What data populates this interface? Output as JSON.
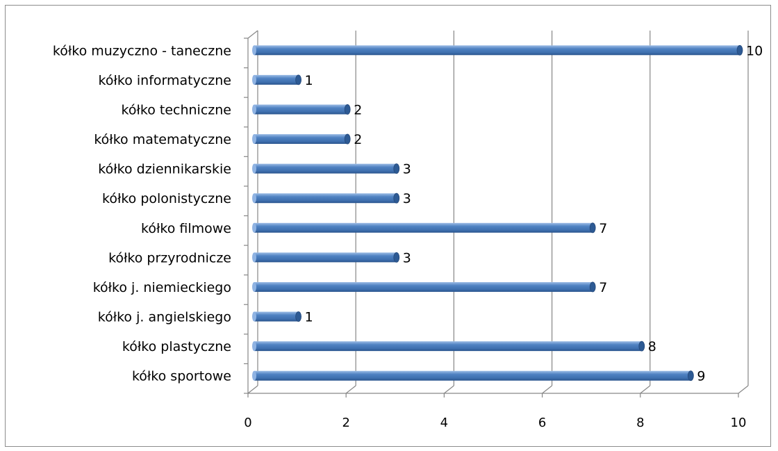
{
  "chart_data": {
    "type": "bar",
    "orientation": "horizontal",
    "categories": [
      "kółko sportowe",
      "kółko plastyczne",
      "kółko j. angielskiego",
      "kółko j. niemieckiego",
      "kółko przyrodnicze",
      "kółko filmowe",
      "kółko polonistyczne",
      "kółko dziennikarskie",
      "kółko matematyczne",
      "kółko techniczne",
      "kółko informatyczne",
      "kółko muzyczno - taneczne"
    ],
    "values": [
      9,
      8,
      1,
      7,
      3,
      7,
      3,
      3,
      2,
      2,
      1,
      10
    ],
    "x_ticks": [
      "0",
      "2",
      "4",
      "6",
      "8",
      "10"
    ],
    "xlim": [
      0,
      10
    ],
    "title": "",
    "xlabel": "",
    "ylabel": "",
    "grid": "vertical",
    "legend": "none",
    "bar_color": "#4a7ebb",
    "bar_dark": "#2d5a94",
    "bar_light": "#8fb3e3",
    "grid_color": "#868686"
  }
}
